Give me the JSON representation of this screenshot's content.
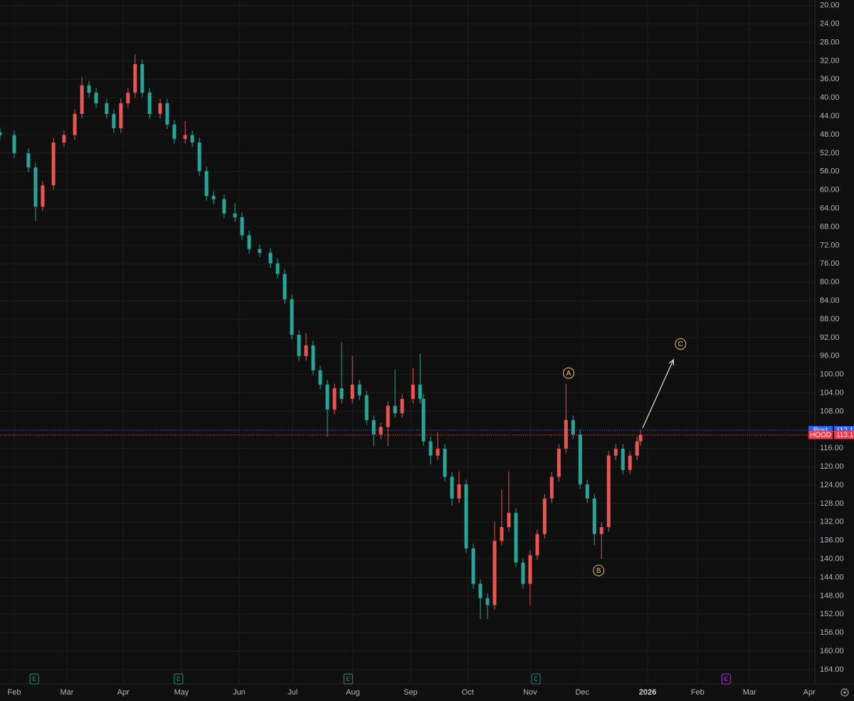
{
  "chart_data": {
    "type": "candlestick",
    "inverted": true,
    "grid": true,
    "up_color": "#26a69a",
    "down_color": "#ef5350",
    "xlim": [
      -5.4,
      304
    ],
    "ylim": [
      18.8,
      167.1
    ],
    "xticks": [
      {
        "value": 0,
        "label": "Feb"
      },
      {
        "value": 20,
        "label": "Mar"
      },
      {
        "value": 41.4,
        "label": "Apr"
      },
      {
        "value": 63.5,
        "label": "May"
      },
      {
        "value": 85.4,
        "label": "Jun"
      },
      {
        "value": 105.7,
        "label": "Jul"
      },
      {
        "value": 128.6,
        "label": "Aug"
      },
      {
        "value": 150.5,
        "label": "Sep"
      },
      {
        "value": 172.2,
        "label": "Oct"
      },
      {
        "value": 195.9,
        "label": "Nov"
      },
      {
        "value": 215.7,
        "label": "Dec"
      },
      {
        "value": 240.5,
        "label": "2026"
      },
      {
        "value": 259.5,
        "label": "Feb"
      },
      {
        "value": 279.2,
        "label": "Mar"
      },
      {
        "value": 301.9,
        "label": "Apr"
      }
    ],
    "yticks": [
      {
        "value": 20,
        "label": "20.00"
      },
      {
        "value": 24,
        "label": "24.00"
      },
      {
        "value": 28,
        "label": "28.00"
      },
      {
        "value": 32,
        "label": "32.00"
      },
      {
        "value": 36,
        "label": "36.00"
      },
      {
        "value": 40,
        "label": "40.00"
      },
      {
        "value": 44,
        "label": "44.00"
      },
      {
        "value": 48,
        "label": "48.00"
      },
      {
        "value": 52,
        "label": "52.00"
      },
      {
        "value": 56,
        "label": "56.00"
      },
      {
        "value": 60,
        "label": "60.00"
      },
      {
        "value": 64,
        "label": "64.00"
      },
      {
        "value": 68,
        "label": "68.00"
      },
      {
        "value": 72,
        "label": "72.00"
      },
      {
        "value": 76,
        "label": "76.00"
      },
      {
        "value": 80,
        "label": "80.00"
      },
      {
        "value": 84,
        "label": "84.00"
      },
      {
        "value": 88,
        "label": "88.00"
      },
      {
        "value": 92,
        "label": "92.00"
      },
      {
        "value": 96,
        "label": "96.00"
      },
      {
        "value": 100,
        "label": "100.00"
      },
      {
        "value": 104,
        "label": "104.00"
      },
      {
        "value": 108,
        "label": "108.00"
      },
      {
        "value": 112,
        "label": "112.00"
      },
      {
        "value": 116,
        "label": "116.00"
      },
      {
        "value": 120,
        "label": "120.00"
      },
      {
        "value": 124,
        "label": "124.00"
      },
      {
        "value": 128,
        "label": "128.00"
      },
      {
        "value": 132,
        "label": "132.00"
      },
      {
        "value": 136,
        "label": "136.00"
      },
      {
        "value": 140,
        "label": "140.00"
      },
      {
        "value": 144,
        "label": "144.00"
      },
      {
        "value": 148,
        "label": "148.00"
      },
      {
        "value": 152,
        "label": "152.00"
      },
      {
        "value": 156,
        "label": "156.00"
      },
      {
        "value": 160,
        "label": "160.00"
      },
      {
        "value": 164,
        "label": "164.00"
      }
    ],
    "candles": [
      {
        "x": -5.4,
        "open": 47.5,
        "high": 49.1,
        "low": 46.5,
        "close": 48.1
      },
      {
        "x": 0,
        "open": 48.1,
        "high": 53.0,
        "low": 47.1,
        "close": 52.0
      },
      {
        "x": 5.4,
        "open": 52.0,
        "high": 56.1,
        "low": 51.0,
        "close": 55.1
      },
      {
        "x": 8.1,
        "open": 55.1,
        "high": 66.7,
        "low": 54.1,
        "close": 63.6
      },
      {
        "x": 10.8,
        "open": 63.6,
        "high": 64.6,
        "low": 58.0,
        "close": 59.0
      },
      {
        "x": 14.9,
        "open": 59.0,
        "high": 60.0,
        "low": 48.7,
        "close": 49.7
      },
      {
        "x": 18.9,
        "open": 49.7,
        "high": 50.7,
        "low": 47.1,
        "close": 48.1
      },
      {
        "x": 23.0,
        "open": 48.1,
        "high": 49.1,
        "low": 42.5,
        "close": 43.5
      },
      {
        "x": 25.7,
        "open": 43.5,
        "high": 44.5,
        "low": 35.5,
        "close": 37.3
      },
      {
        "x": 28.4,
        "open": 37.3,
        "high": 39.9,
        "low": 36.3,
        "close": 38.9
      },
      {
        "x": 31.1,
        "open": 38.9,
        "high": 42.2,
        "low": 37.9,
        "close": 41.2
      },
      {
        "x": 35.1,
        "open": 41.2,
        "high": 44.5,
        "low": 40.2,
        "close": 43.5
      },
      {
        "x": 37.8,
        "open": 43.5,
        "high": 47.6,
        "low": 42.5,
        "close": 46.6
      },
      {
        "x": 40.5,
        "open": 46.6,
        "high": 47.6,
        "low": 40.2,
        "close": 41.2
      },
      {
        "x": 43.2,
        "open": 41.2,
        "high": 42.2,
        "low": 37.9,
        "close": 38.9
      },
      {
        "x": 45.9,
        "open": 38.9,
        "high": 39.9,
        "low": 30.5,
        "close": 32.7
      },
      {
        "x": 48.6,
        "open": 32.7,
        "high": 39.9,
        "low": 31.7,
        "close": 38.9
      },
      {
        "x": 51.4,
        "open": 38.9,
        "high": 44.5,
        "low": 37.9,
        "close": 43.5
      },
      {
        "x": 55.4,
        "open": 43.5,
        "high": 44.5,
        "low": 40.2,
        "close": 41.2
      },
      {
        "x": 58.1,
        "open": 41.2,
        "high": 46.8,
        "low": 40.2,
        "close": 45.8
      },
      {
        "x": 60.8,
        "open": 45.8,
        "high": 49.9,
        "low": 44.8,
        "close": 48.9
      },
      {
        "x": 64.9,
        "open": 48.9,
        "high": 49.9,
        "low": 45.1,
        "close": 48.1
      },
      {
        "x": 67.6,
        "open": 48.1,
        "high": 50.7,
        "low": 47.1,
        "close": 49.7
      },
      {
        "x": 70.3,
        "open": 49.7,
        "high": 56.9,
        "low": 48.7,
        "close": 55.9
      },
      {
        "x": 73.0,
        "open": 55.9,
        "high": 62.3,
        "low": 54.9,
        "close": 61.3
      },
      {
        "x": 75.7,
        "open": 61.3,
        "high": 63.0,
        "low": 60.3,
        "close": 62.0
      },
      {
        "x": 79.7,
        "open": 62.0,
        "high": 66.1,
        "low": 61.0,
        "close": 65.1
      },
      {
        "x": 83.8,
        "open": 65.1,
        "high": 66.9,
        "low": 62.9,
        "close": 65.9
      },
      {
        "x": 86.5,
        "open": 65.9,
        "high": 70.8,
        "low": 64.9,
        "close": 69.8
      },
      {
        "x": 89.2,
        "open": 69.8,
        "high": 73.8,
        "low": 68.8,
        "close": 72.8
      },
      {
        "x": 93.2,
        "open": 72.8,
        "high": 74.6,
        "low": 71.8,
        "close": 73.6
      },
      {
        "x": 97.3,
        "open": 73.6,
        "high": 76.9,
        "low": 72.6,
        "close": 75.9
      },
      {
        "x": 100.0,
        "open": 75.9,
        "high": 79.2,
        "low": 74.9,
        "close": 78.2
      },
      {
        "x": 102.7,
        "open": 78.2,
        "high": 84.7,
        "low": 77.2,
        "close": 83.7
      },
      {
        "x": 105.4,
        "open": 83.7,
        "high": 92.4,
        "low": 82.7,
        "close": 91.4
      },
      {
        "x": 108.1,
        "open": 91.4,
        "high": 97.0,
        "low": 90.4,
        "close": 96.0
      },
      {
        "x": 110.8,
        "open": 96.0,
        "high": 97.0,
        "low": 91.0,
        "close": 93.7
      },
      {
        "x": 113.5,
        "open": 93.7,
        "high": 100.1,
        "low": 92.7,
        "close": 99.1
      },
      {
        "x": 116.2,
        "open": 99.1,
        "high": 103.2,
        "low": 98.1,
        "close": 102.2
      },
      {
        "x": 118.9,
        "open": 102.2,
        "high": 113.5,
        "low": 101.2,
        "close": 107.6
      },
      {
        "x": 121.6,
        "open": 107.6,
        "high": 108.6,
        "low": 102.0,
        "close": 103.0
      },
      {
        "x": 124.3,
        "open": 103.0,
        "high": 106.3,
        "low": 93.0,
        "close": 105.3
      },
      {
        "x": 128.4,
        "open": 105.3,
        "high": 106.3,
        "low": 96.0,
        "close": 102.2
      },
      {
        "x": 131.1,
        "open": 102.2,
        "high": 105.5,
        "low": 101.2,
        "close": 104.5
      },
      {
        "x": 133.8,
        "open": 104.5,
        "high": 110.9,
        "low": 103.5,
        "close": 109.9
      },
      {
        "x": 136.5,
        "open": 109.9,
        "high": 115.5,
        "low": 108.9,
        "close": 113.0
      },
      {
        "x": 139.2,
        "open": 113.0,
        "high": 114.0,
        "low": 110.4,
        "close": 111.4
      },
      {
        "x": 141.9,
        "open": 111.4,
        "high": 115.5,
        "low": 105.8,
        "close": 106.8
      },
      {
        "x": 144.6,
        "open": 106.8,
        "high": 109.4,
        "low": 99.0,
        "close": 108.4
      },
      {
        "x": 147.3,
        "open": 108.4,
        "high": 109.4,
        "low": 104.3,
        "close": 105.3
      },
      {
        "x": 151.4,
        "open": 105.3,
        "high": 106.3,
        "low": 98.6,
        "close": 102.2
      },
      {
        "x": 154.1,
        "open": 102.2,
        "high": 106.3,
        "low": 95.5,
        "close": 105.3
      },
      {
        "x": 155.4,
        "open": 105.3,
        "high": 115.5,
        "low": 104.3,
        "close": 114.5
      },
      {
        "x": 158.1,
        "open": 114.5,
        "high": 119.5,
        "low": 113.5,
        "close": 117.6
      },
      {
        "x": 160.8,
        "open": 117.6,
        "high": 118.6,
        "low": 112.5,
        "close": 116.1
      },
      {
        "x": 163.5,
        "open": 116.1,
        "high": 123.2,
        "low": 115.1,
        "close": 122.2
      },
      {
        "x": 166.2,
        "open": 122.2,
        "high": 128.5,
        "low": 121.2,
        "close": 126.9
      },
      {
        "x": 168.9,
        "open": 126.9,
        "high": 127.9,
        "low": 121.0,
        "close": 123.8
      },
      {
        "x": 171.6,
        "open": 123.8,
        "high": 138.7,
        "low": 122.8,
        "close": 137.7
      },
      {
        "x": 174.3,
        "open": 137.7,
        "high": 146.4,
        "low": 136.7,
        "close": 145.4
      },
      {
        "x": 177.0,
        "open": 145.4,
        "high": 153.0,
        "low": 144.4,
        "close": 148.5
      },
      {
        "x": 179.7,
        "open": 148.5,
        "high": 153.0,
        "low": 147.5,
        "close": 150.0
      },
      {
        "x": 182.4,
        "open": 150.0,
        "high": 151.0,
        "low": 132.0,
        "close": 136.1
      },
      {
        "x": 185.1,
        "open": 136.1,
        "high": 137.1,
        "low": 125.0,
        "close": 133.1
      },
      {
        "x": 187.8,
        "open": 133.1,
        "high": 134.1,
        "low": 121.0,
        "close": 130.0
      },
      {
        "x": 190.5,
        "open": 130.0,
        "high": 141.8,
        "low": 129.0,
        "close": 140.8
      },
      {
        "x": 193.2,
        "open": 140.8,
        "high": 146.4,
        "low": 139.8,
        "close": 145.4
      },
      {
        "x": 195.9,
        "open": 145.4,
        "high": 150.0,
        "low": 138.2,
        "close": 139.2
      },
      {
        "x": 198.6,
        "open": 139.2,
        "high": 140.2,
        "low": 133.6,
        "close": 134.6
      },
      {
        "x": 201.4,
        "open": 134.6,
        "high": 135.6,
        "low": 125.9,
        "close": 126.9
      },
      {
        "x": 204.1,
        "open": 126.9,
        "high": 127.9,
        "low": 121.2,
        "close": 122.2
      },
      {
        "x": 206.8,
        "open": 122.2,
        "high": 123.2,
        "low": 115.1,
        "close": 116.1
      },
      {
        "x": 209.5,
        "open": 116.1,
        "high": 117.1,
        "low": 102.0,
        "close": 109.9
      },
      {
        "x": 212.2,
        "open": 109.9,
        "high": 114.0,
        "low": 108.9,
        "close": 113.0
      },
      {
        "x": 214.9,
        "open": 113.0,
        "high": 124.8,
        "low": 112.0,
        "close": 123.8
      },
      {
        "x": 217.6,
        "open": 123.8,
        "high": 127.9,
        "low": 122.8,
        "close": 126.9
      },
      {
        "x": 220.3,
        "open": 126.9,
        "high": 137.0,
        "low": 125.9,
        "close": 134.6
      },
      {
        "x": 223.0,
        "open": 134.6,
        "high": 140.0,
        "low": 132.1,
        "close": 133.1
      },
      {
        "x": 225.7,
        "open": 133.1,
        "high": 134.1,
        "low": 116.6,
        "close": 117.6
      },
      {
        "x": 228.4,
        "open": 117.6,
        "high": 118.6,
        "low": 115.1,
        "close": 116.1
      },
      {
        "x": 231.1,
        "open": 116.1,
        "high": 121.7,
        "low": 115.1,
        "close": 120.7
      },
      {
        "x": 233.8,
        "open": 120.7,
        "high": 121.7,
        "low": 116.6,
        "close": 117.6
      },
      {
        "x": 236.5,
        "open": 117.6,
        "high": 118.6,
        "low": 113.5,
        "close": 114.5
      },
      {
        "x": 237.8,
        "open": 114.5,
        "high": 115.5,
        "low": 112.1,
        "close": 113.1
      }
    ],
    "price_lines": [
      {
        "name": "Post",
        "value": 112.1,
        "color": "#2962ff"
      },
      {
        "name": "HOOD",
        "value": 113.1,
        "color": "#f23645"
      }
    ],
    "events": [
      {
        "label": "E",
        "x": 7.6,
        "color": "#1f8f7e"
      },
      {
        "label": "E",
        "x": 62.4,
        "color": "#1f8f7e"
      },
      {
        "label": "E",
        "x": 126.8,
        "color": "#1f8f7e"
      },
      {
        "label": "E",
        "x": 198.1,
        "color": "#1f8f7e"
      },
      {
        "label": "E",
        "x": 270.3,
        "color": "#b32bd6"
      }
    ],
    "annotations": [
      {
        "text": "A",
        "x": 210.5,
        "y": 99.7
      },
      {
        "text": "B",
        "x": 221.9,
        "y": 142.5
      },
      {
        "text": "C",
        "x": 253.0,
        "y": 93.4
      }
    ],
    "annotation_color": "#f0c24a",
    "arrow": {
      "x": [
        238.6,
        250.3
      ],
      "y": [
        111.6,
        96.8
      ],
      "color": "#e0e0e0"
    }
  }
}
